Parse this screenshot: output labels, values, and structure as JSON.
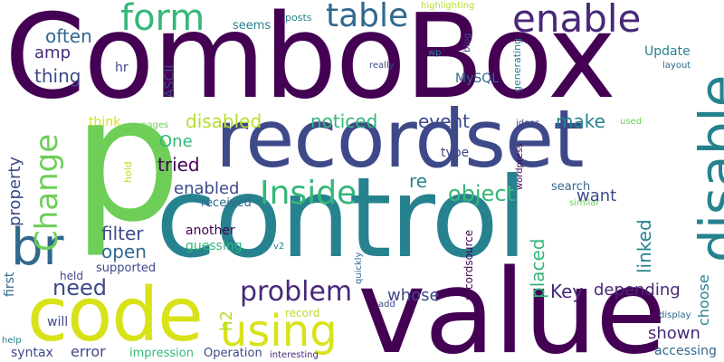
{
  "palette": {
    "dark_purple": "#440154",
    "purple": "#482878",
    "indigo": "#3e4989",
    "slate_blue": "#31688e",
    "teal": "#26828e",
    "sea_green": "#1f9e89",
    "green": "#35b779",
    "light_green": "#6ece58",
    "yellow_green": "#b5de2b",
    "yellow": "#d8e219"
  },
  "words": [
    {
      "text": "ComboBox",
      "color": "#440154"
    },
    {
      "text": "p",
      "color": "#6ece58"
    },
    {
      "text": "control",
      "color": "#26828e"
    },
    {
      "text": "recordset",
      "color": "#3e4989"
    },
    {
      "text": "value",
      "color": "#440154"
    },
    {
      "text": "code",
      "color": "#d8e219"
    },
    {
      "text": "disable",
      "color": "#26828e"
    },
    {
      "text": "br",
      "color": "#31688e"
    },
    {
      "text": "form",
      "color": "#35b779"
    },
    {
      "text": "table",
      "color": "#31688e"
    },
    {
      "text": "enable",
      "color": "#482878"
    },
    {
      "text": "Change",
      "color": "#6ece58"
    },
    {
      "text": "using",
      "color": "#d8e219"
    },
    {
      "text": "Inside",
      "color": "#35b779"
    },
    {
      "text": "problem",
      "color": "#482878"
    },
    {
      "text": "often",
      "color": "#31688e"
    },
    {
      "text": "amp",
      "color": "#482878"
    },
    {
      "text": "thing",
      "color": "#3e4989"
    },
    {
      "text": "hr",
      "color": "#3e4989"
    },
    {
      "text": "ASCII",
      "color": "#3e4989"
    },
    {
      "text": "seems",
      "color": "#26828e"
    },
    {
      "text": "posts",
      "color": "#26828e"
    },
    {
      "text": "highlighting",
      "color": "#b5de2b"
    },
    {
      "text": "blog",
      "color": "#3e4989"
    },
    {
      "text": "generating",
      "color": "#26828e"
    },
    {
      "text": "wp",
      "color": "#26828e"
    },
    {
      "text": "MySQL",
      "color": "#31688e"
    },
    {
      "text": "Update",
      "color": "#26828e"
    },
    {
      "text": "layout",
      "color": "#31688e"
    },
    {
      "text": "really",
      "color": "#3e4989"
    },
    {
      "text": "disabled",
      "color": "#b5de2b"
    },
    {
      "text": "noticed",
      "color": "#35b779"
    },
    {
      "text": "event",
      "color": "#3e4989"
    },
    {
      "text": "make",
      "color": "#26828e"
    },
    {
      "text": "ideas",
      "color": "#3e4989"
    },
    {
      "text": "used",
      "color": "#6ece58"
    },
    {
      "text": "think",
      "color": "#d8e219"
    },
    {
      "text": "pages",
      "color": "#6ece58"
    },
    {
      "text": "One",
      "color": "#35b779"
    },
    {
      "text": "tried",
      "color": "#440154"
    },
    {
      "text": "hold",
      "color": "#b5de2b"
    },
    {
      "text": "property",
      "color": "#3e4989"
    },
    {
      "text": "first",
      "color": "#31688e"
    },
    {
      "text": "enabled",
      "color": "#3e4989"
    },
    {
      "text": "re",
      "color": "#26828e"
    },
    {
      "text": "object",
      "color": "#35b779"
    },
    {
      "text": "type",
      "color": "#3e4989"
    },
    {
      "text": "wordpress",
      "color": "#440154"
    },
    {
      "text": "search",
      "color": "#31688e"
    },
    {
      "text": "similar",
      "color": "#6ece58"
    },
    {
      "text": "want",
      "color": "#3e4989"
    },
    {
      "text": "received",
      "color": "#31688e"
    },
    {
      "text": "filter",
      "color": "#3e4989"
    },
    {
      "text": "open",
      "color": "#31688e"
    },
    {
      "text": "another",
      "color": "#440154"
    },
    {
      "text": "guessing",
      "color": "#35b779"
    },
    {
      "text": "v2",
      "color": "#26828e"
    },
    {
      "text": "linked",
      "color": "#26828e"
    },
    {
      "text": "choose",
      "color": "#26828e"
    },
    {
      "text": "need",
      "color": "#3e4989"
    },
    {
      "text": "supported",
      "color": "#3e4989"
    },
    {
      "text": "held",
      "color": "#3e4989"
    },
    {
      "text": "quickly",
      "color": "#31688e"
    },
    {
      "text": "recordsource",
      "color": "#440154"
    },
    {
      "text": "placed",
      "color": "#35b779"
    },
    {
      "text": "Key",
      "color": "#482878"
    },
    {
      "text": "depending",
      "color": "#482878"
    },
    {
      "text": "whose",
      "color": "#3e4989"
    },
    {
      "text": "h2",
      "color": "#b5de2b"
    },
    {
      "text": "record",
      "color": "#b5de2b"
    },
    {
      "text": "add",
      "color": "#3e4989"
    },
    {
      "text": "display",
      "color": "#31688e"
    },
    {
      "text": "will",
      "color": "#3e4989"
    },
    {
      "text": "shown",
      "color": "#482878"
    },
    {
      "text": "help",
      "color": "#26828e"
    },
    {
      "text": "syntax",
      "color": "#3e4989"
    },
    {
      "text": "error",
      "color": "#3e4989"
    },
    {
      "text": "impression",
      "color": "#35b779"
    },
    {
      "text": "Operation",
      "color": "#3e4989"
    },
    {
      "text": "interesting",
      "color": "#482878"
    },
    {
      "text": "accessing",
      "color": "#31688e"
    }
  ]
}
